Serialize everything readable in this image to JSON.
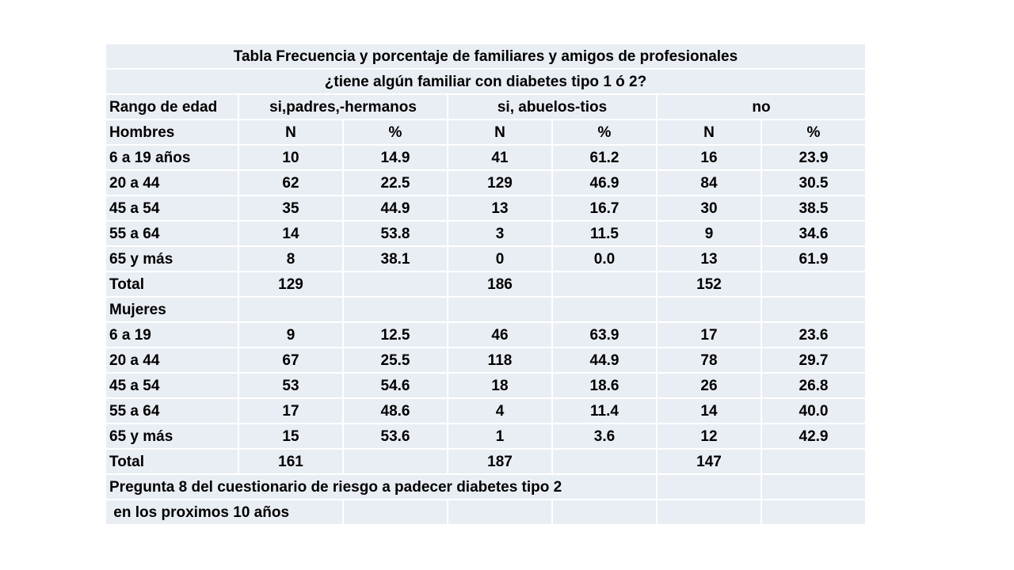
{
  "title_line1": "Tabla   Frecuencia y porcentaje de familiares y amigos de profesionales",
  "title_line2": "¿tiene algún familiar con diabetes tipo 1 ó 2?",
  "col_header": {
    "age_range": "Rango de edad",
    "group1": "si,padres,-hermanos",
    "group2": "si, abuelos-tios",
    "group3": "no"
  },
  "men_header": {
    "label": "Hombres",
    "cols": [
      "N",
      "%",
      "N",
      "%",
      "N",
      "%"
    ]
  },
  "men_rows": [
    {
      "label": "6 a 19 años",
      "values": [
        "10",
        "14.9",
        "41",
        "61.2",
        "16",
        "23.9"
      ]
    },
    {
      "label": "20 a 44",
      "values": [
        "62",
        "22.5",
        "129",
        "46.9",
        "84",
        "30.5"
      ]
    },
    {
      "label": "45 a 54",
      "values": [
        "35",
        "44.9",
        "13",
        "16.7",
        "30",
        "38.5"
      ]
    },
    {
      "label": "55 a 64",
      "values": [
        "14",
        "53.8",
        "3",
        "11.5",
        "9",
        "34.6"
      ]
    },
    {
      "label": "65 y más",
      "values": [
        "8",
        "38.1",
        "0",
        "0.0",
        "13",
        "61.9"
      ]
    },
    {
      "label": "Total",
      "values": [
        "129",
        "",
        "186",
        "",
        "152",
        ""
      ]
    }
  ],
  "women_header": {
    "label": "Mujeres"
  },
  "women_rows": [
    {
      "label": "6 a 19",
      "values": [
        "9",
        "12.5",
        "46",
        "63.9",
        "17",
        "23.6"
      ]
    },
    {
      "label": "20 a 44",
      "values": [
        "67",
        "25.5",
        "118",
        "44.9",
        "78",
        "29.7"
      ]
    },
    {
      "label": "45 a 54",
      "values": [
        "53",
        "54.6",
        "18",
        "18.6",
        "26",
        "26.8"
      ]
    },
    {
      "label": "55 a 64",
      "values": [
        "17",
        "48.6",
        "4",
        "11.4",
        "14",
        "40.0"
      ]
    },
    {
      "label": "65 y más",
      "values": [
        "15",
        "53.6",
        "1",
        "3.6",
        "12",
        "42.9"
      ]
    },
    {
      "label": "Total",
      "values": [
        "161",
        "",
        "187",
        "",
        "147",
        ""
      ]
    }
  ],
  "footnote_line1": "Pregunta 8 del cuestionario de riesgo a padecer diabetes tipo 2",
  "footnote_line2": " en los proximos 10 años"
}
